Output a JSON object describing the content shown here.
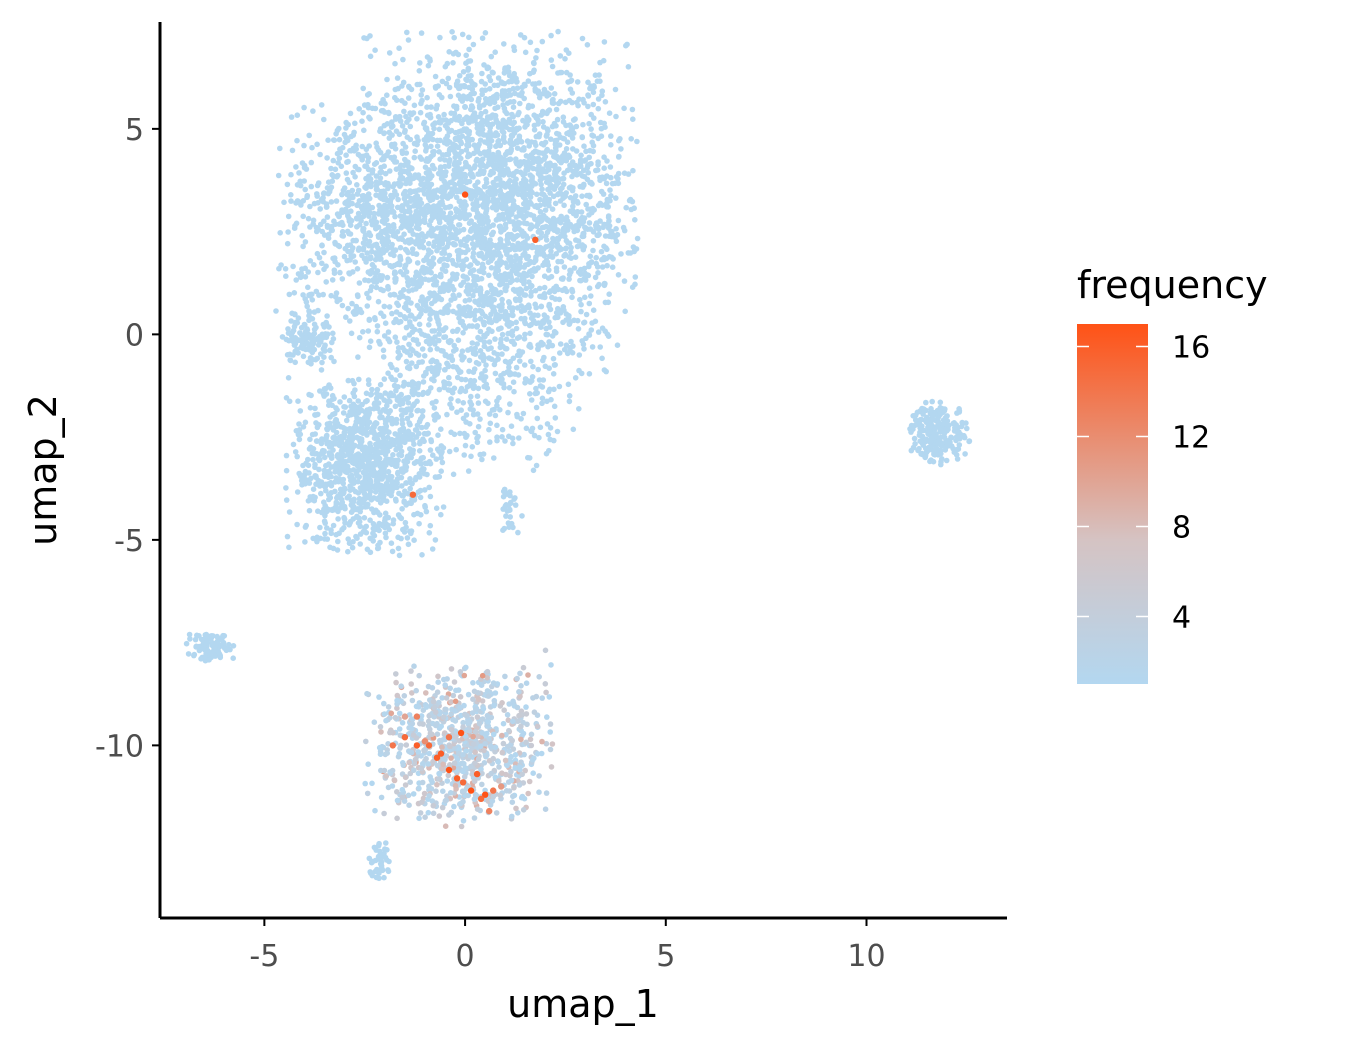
{
  "chart_data": {
    "type": "scatter",
    "title": "",
    "xlabel": "umap_1",
    "ylabel": "umap_2",
    "xlim": [
      -7.6,
      13.5
    ],
    "ylim": [
      -14.2,
      7.6
    ],
    "x_ticks": [
      -5,
      0,
      5,
      10
    ],
    "y_ticks": [
      5,
      0,
      -5,
      -10
    ],
    "x_tick_labels": [
      "-5",
      "0",
      "5",
      "10"
    ],
    "y_tick_labels": [
      "5",
      "0",
      "-5",
      "-10"
    ],
    "grid": false,
    "legend": {
      "title": "frequency",
      "placement": "right",
      "min": 1,
      "max": 17,
      "ticks": [
        4,
        8,
        12,
        16
      ],
      "tick_labels": [
        "4",
        "8",
        "12",
        "16"
      ],
      "low_color": "#b3d7f0",
      "mid_color": "#d5c3c3",
      "high_color": "#ff5216"
    },
    "clusters": [
      {
        "name": "main-upper",
        "cx": 0.8,
        "cy": 3.2,
        "sx": 1.6,
        "sy": 1.9,
        "n": 2600,
        "freq": 1
      },
      {
        "name": "main-left-lobe",
        "cx": -2.4,
        "cy": 2.8,
        "sx": 1.1,
        "sy": 1.3,
        "n": 700,
        "freq": 1
      },
      {
        "name": "main-bridge",
        "cx": 0.2,
        "cy": -1.0,
        "sx": 1.4,
        "sy": 1.1,
        "n": 500,
        "freq": 1
      },
      {
        "name": "left-small",
        "cx": -3.9,
        "cy": -0.1,
        "sx": 0.3,
        "sy": 0.35,
        "n": 130,
        "freq": 1
      },
      {
        "name": "mid-lower-left",
        "cx": -2.5,
        "cy": -3.2,
        "sx": 0.9,
        "sy": 1.0,
        "n": 1000,
        "freq": 1
      },
      {
        "name": "tail-right",
        "cx": 1.1,
        "cy": -4.2,
        "sx": 0.15,
        "sy": 0.3,
        "n": 30,
        "freq": 1
      },
      {
        "name": "right-island",
        "cx": 11.8,
        "cy": -2.4,
        "sx": 0.35,
        "sy": 0.35,
        "n": 220,
        "freq": 1
      },
      {
        "name": "far-left-small",
        "cx": -6.3,
        "cy": -7.6,
        "sx": 0.3,
        "sy": 0.18,
        "n": 90,
        "freq": 1
      },
      {
        "name": "bottom-cluster",
        "cx": -0.1,
        "cy": -10.0,
        "sx": 1.1,
        "sy": 0.9,
        "n": 850,
        "freq": 4
      },
      {
        "name": "bottom-tail",
        "cx": -2.1,
        "cy": -12.8,
        "sx": 0.15,
        "sy": 0.3,
        "n": 40,
        "freq": 1
      }
    ],
    "highlight_points": [
      {
        "x": 0.0,
        "y": 3.4,
        "freq": 17
      },
      {
        "x": 1.75,
        "y": 2.3,
        "freq": 16
      },
      {
        "x": -1.3,
        "y": -3.9,
        "freq": 15
      },
      {
        "x": -1.8,
        "y": -10.0,
        "freq": 14
      },
      {
        "x": -1.5,
        "y": -9.8,
        "freq": 15
      },
      {
        "x": -1.2,
        "y": -9.3,
        "freq": 13
      },
      {
        "x": -1.2,
        "y": -10.0,
        "freq": 16
      },
      {
        "x": -0.9,
        "y": -10.0,
        "freq": 15
      },
      {
        "x": -0.6,
        "y": -10.2,
        "freq": 16
      },
      {
        "x": -0.4,
        "y": -9.8,
        "freq": 14
      },
      {
        "x": -0.1,
        "y": -9.7,
        "freq": 17
      },
      {
        "x": -0.4,
        "y": -10.6,
        "freq": 17
      },
      {
        "x": -0.2,
        "y": -10.8,
        "freq": 16
      },
      {
        "x": -0.05,
        "y": -10.9,
        "freq": 15
      },
      {
        "x": 0.15,
        "y": -11.1,
        "freq": 17
      },
      {
        "x": 0.3,
        "y": -10.7,
        "freq": 16
      },
      {
        "x": 0.5,
        "y": -11.2,
        "freq": 17
      },
      {
        "x": 0.7,
        "y": -11.1,
        "freq": 14
      },
      {
        "x": 0.4,
        "y": -11.3,
        "freq": 15
      },
      {
        "x": -0.7,
        "y": -10.3,
        "freq": 16
      },
      {
        "x": -1.0,
        "y": -9.9,
        "freq": 12
      },
      {
        "x": -1.5,
        "y": -9.3,
        "freq": 10
      },
      {
        "x": 0.6,
        "y": -11.6,
        "freq": 13
      },
      {
        "x": 0.9,
        "y": -11.0,
        "freq": 11
      }
    ]
  }
}
